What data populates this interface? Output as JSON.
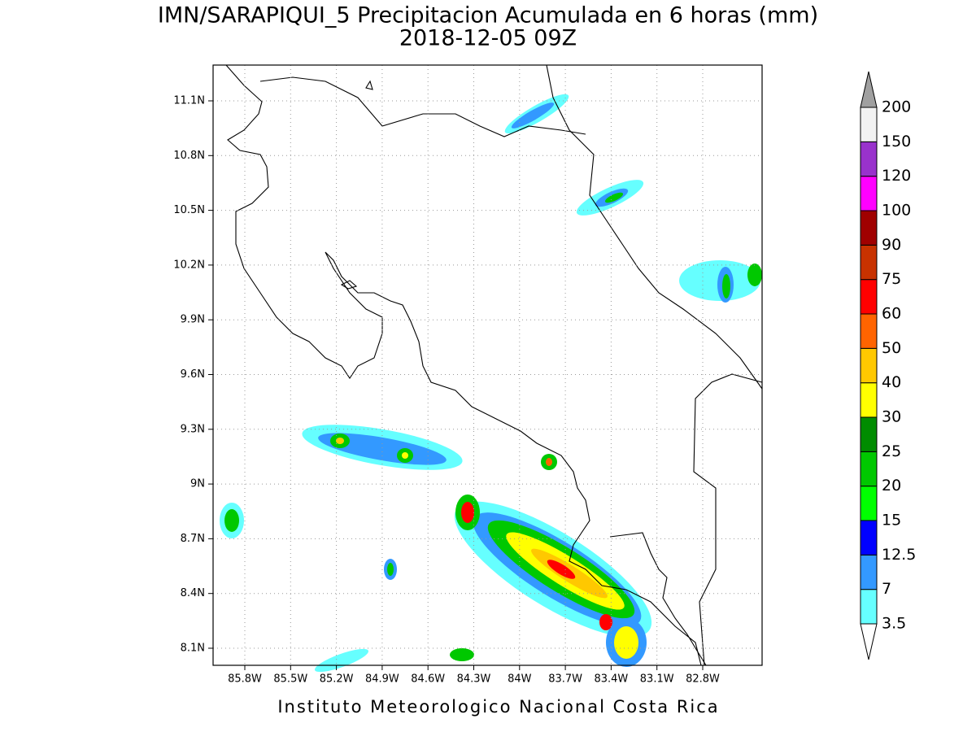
{
  "title": "IMN/SARAPIQUI_5 Precipitacion Acumulada en 6 horas (mm)",
  "subtitle": "2018-12-05 09Z",
  "footer": "Instituto Meteorologico Nacional Costa Rica",
  "x_axis": {
    "labels": [
      "85.8W",
      "85.5W",
      "85.2W",
      "84.9W",
      "84.6W",
      "84.3W",
      "84W",
      "83.7W",
      "83.4W",
      "83.1W",
      "82.8W"
    ]
  },
  "y_axis": {
    "labels": [
      "11.1N",
      "10.8N",
      "10.5N",
      "10.2N",
      "9.9N",
      "9.6N",
      "9.3N",
      "9N",
      "8.7N",
      "8.4N",
      "8.1N"
    ]
  },
  "colorbar": {
    "levels": [
      3.5,
      7,
      12.5,
      15,
      20,
      25,
      30,
      40,
      50,
      60,
      75,
      90,
      100,
      120,
      150,
      200
    ],
    "colors": [
      "#66ffff",
      "#3399ff",
      "#0000ff",
      "#00ff00",
      "#00c800",
      "#008c00",
      "#ffff00",
      "#ffc800",
      "#ff6400",
      "#ff0000",
      "#c83200",
      "#a00000",
      "#ff00ff",
      "#9932cc",
      "#f2f2f2"
    ],
    "under_color": "#ffffff",
    "over_color": "#a0a0a0"
  }
}
